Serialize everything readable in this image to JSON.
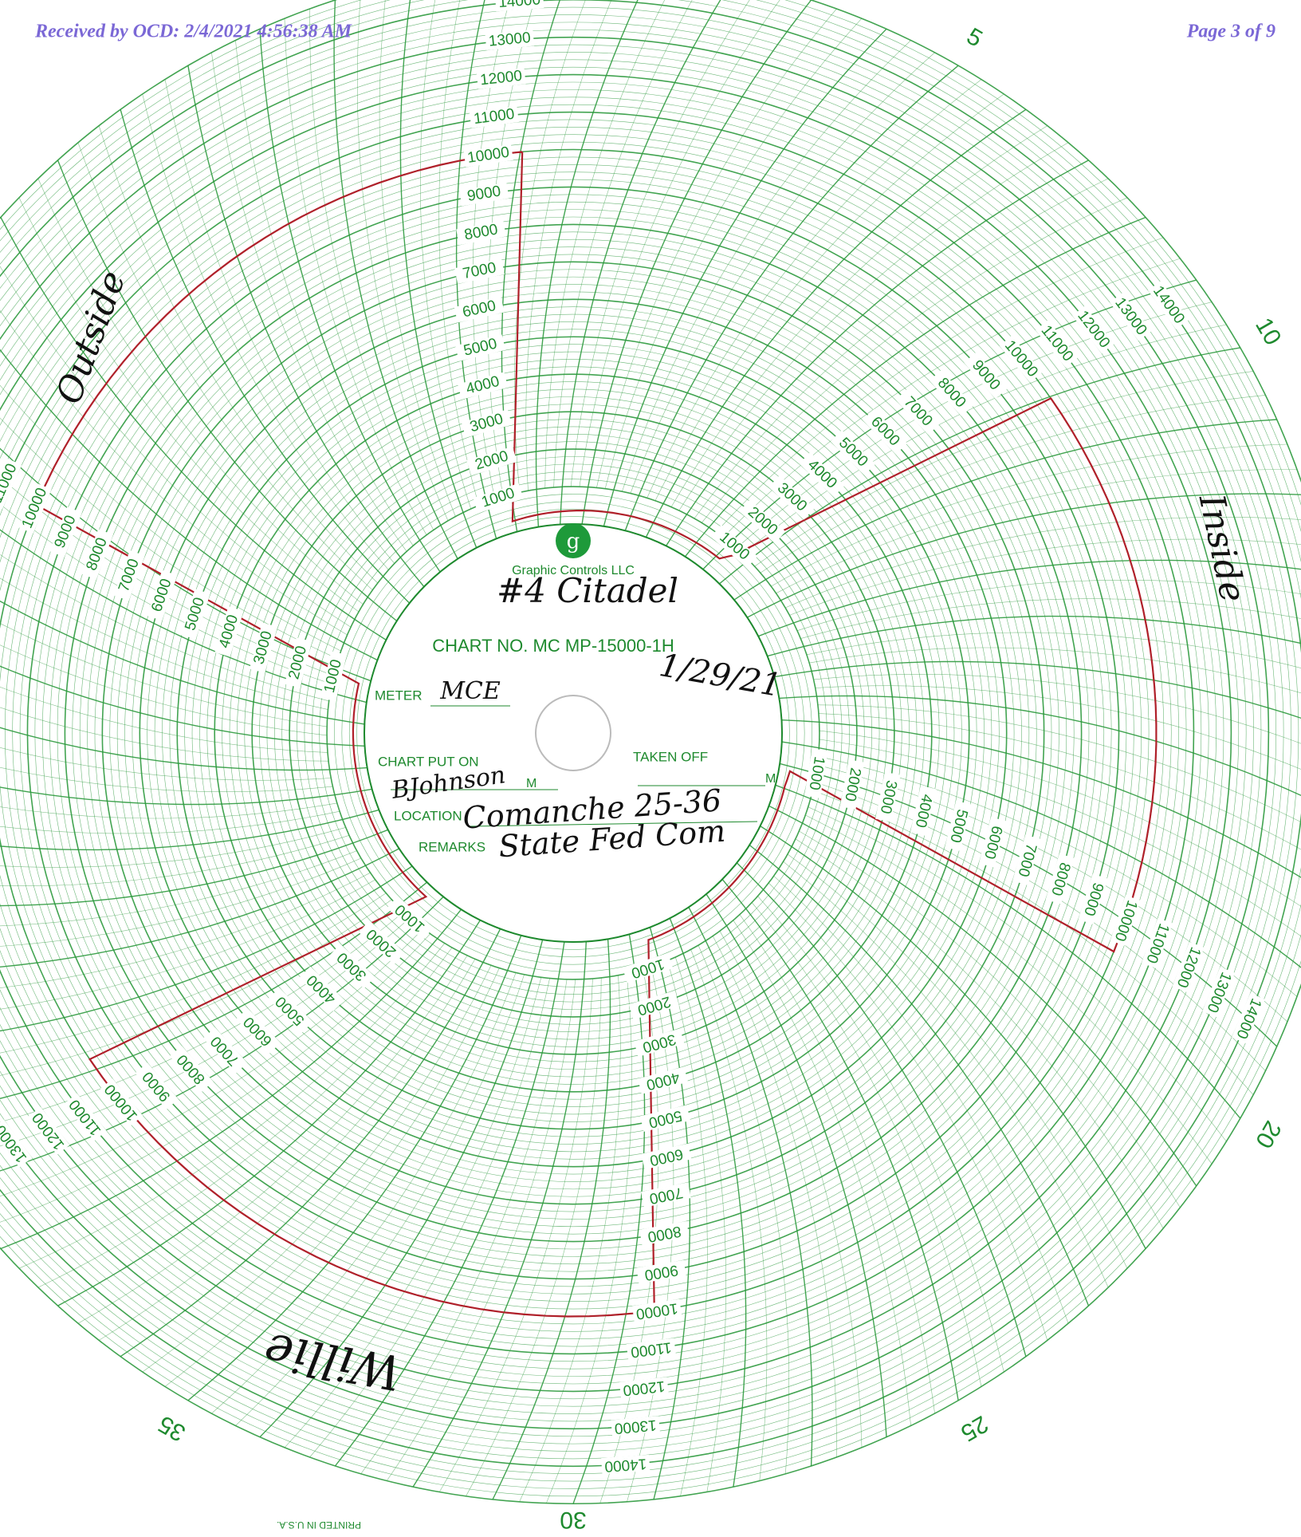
{
  "header": {
    "received": "Received by OCD: 2/4/2021 4:56:38 AM",
    "page": "Page 3 of 9"
  },
  "hour_labels": [
    "5",
    "10",
    "20",
    "25",
    "30",
    "35"
  ],
  "scale_labels": [
    "1000",
    "2000",
    "3000",
    "4000",
    "5000",
    "6000",
    "7000",
    "8000",
    "9000",
    "10000",
    "11000",
    "12000",
    "13000",
    "14000"
  ],
  "center": {
    "brand": "Graphic Controls LLC",
    "chart_no": "CHART NO.  MC  MP-15000-1H",
    "meter_label": "METER",
    "chart_put_on": "CHART PUT ON",
    "taken_off": "TAKEN OFF",
    "m": "M",
    "location_label": "LOCATION",
    "remarks_label": "REMARKS"
  },
  "handwriting": {
    "title": "#4 Citadel",
    "date": "1/29/21",
    "meter": "MCE",
    "put_on": "BJohnson",
    "location": "Comanche 25-36",
    "remarks": "State Fed Com",
    "outside": "Outside",
    "inside": "Inside",
    "signature": "Willie"
  },
  "footer": "PRINTED IN U.S.A."
}
